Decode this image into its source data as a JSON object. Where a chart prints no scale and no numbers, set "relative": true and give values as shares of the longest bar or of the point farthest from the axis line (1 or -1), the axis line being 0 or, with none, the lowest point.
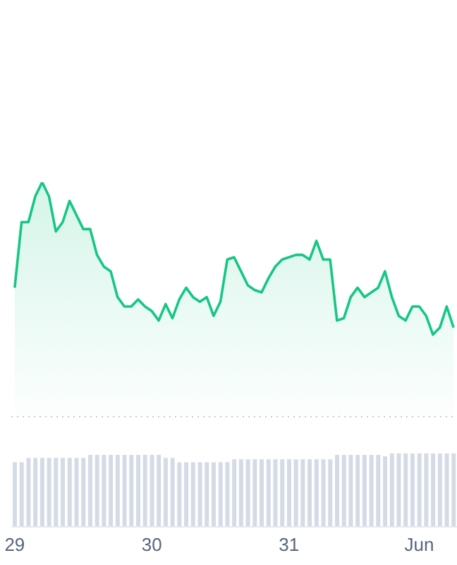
{
  "chart_data": [
    {
      "type": "area",
      "relative": true,
      "tick_labels": false,
      "series": [
        {
          "color": "#16c784",
          "values": [
            0.55,
            0.83,
            0.83,
            0.94,
            1,
            0.94,
            0.79,
            0.83,
            0.92,
            0.86,
            0.8,
            0.8,
            0.69,
            0.64,
            0.62,
            0.51,
            0.47,
            0.47,
            0.5,
            0.47,
            0.45,
            0.41,
            0.48,
            0.42,
            0.5,
            0.55,
            0.51,
            0.49,
            0.51,
            0.43,
            0.49,
            0.67,
            0.68,
            0.62,
            0.56,
            0.54,
            0.53,
            0.59,
            0.64,
            0.67,
            0.68,
            0.69,
            0.69,
            0.67,
            0.75,
            0.67,
            0.67,
            0.41,
            0.42,
            0.51,
            0.55,
            0.51,
            0.53,
            0.55,
            0.62,
            0.51,
            0.43,
            0.41,
            0.47,
            0.47,
            0.43,
            0.35,
            0.38,
            0.47,
            0.38
          ]
        }
      ]
    },
    {
      "type": "bar",
      "relative": true,
      "tick_labels": "x",
      "categories": [
        "29",
        null,
        null,
        null,
        null,
        null,
        null,
        null,
        null,
        null,
        null,
        null,
        null,
        null,
        null,
        null,
        null,
        null,
        null,
        null,
        "30",
        null,
        null,
        null,
        null,
        null,
        null,
        null,
        null,
        null,
        null,
        null,
        null,
        null,
        null,
        null,
        null,
        null,
        null,
        null,
        "31",
        null,
        null,
        null,
        null,
        null,
        null,
        null,
        null,
        null,
        null,
        null,
        null,
        null,
        null,
        null,
        null,
        null,
        null,
        "Jun",
        null,
        null,
        null,
        null,
        null
      ],
      "series": [
        {
          "color": "#d5dbe6",
          "values": [
            0.88,
            0.88,
            0.94,
            0.94,
            0.94,
            0.94,
            0.94,
            0.94,
            0.94,
            0.94,
            0.94,
            0.98,
            0.98,
            0.98,
            0.98,
            0.98,
            0.98,
            0.98,
            0.98,
            0.98,
            0.98,
            0.98,
            0.94,
            0.94,
            0.88,
            0.88,
            0.88,
            0.88,
            0.88,
            0.88,
            0.88,
            0.88,
            0.92,
            0.92,
            0.92,
            0.92,
            0.92,
            0.92,
            0.92,
            0.92,
            0.92,
            0.92,
            0.92,
            0.92,
            0.92,
            0.92,
            0.92,
            0.98,
            0.98,
            0.98,
            0.98,
            0.98,
            0.98,
            0.98,
            0.96,
            1,
            1,
            1,
            1,
            1,
            1,
            1,
            1,
            1,
            1
          ]
        }
      ]
    }
  ]
}
